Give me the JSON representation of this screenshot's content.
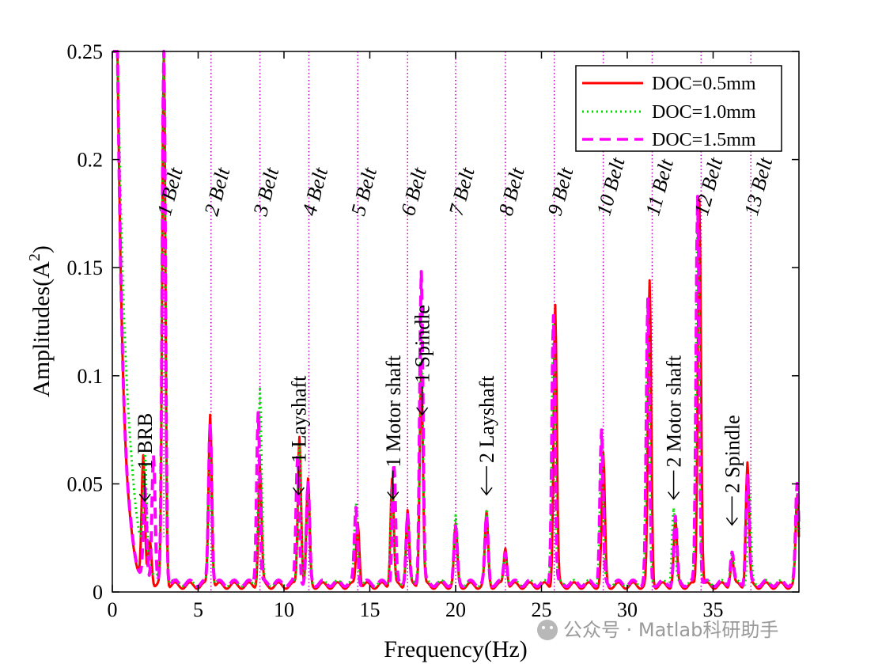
{
  "chart_data": {
    "type": "line",
    "xlabel": "Frequency(Hz)",
    "ylabel_main": "Amplitudes(A",
    "ylabel_sup": "2",
    "ylabel_end": ")",
    "xlim": [
      0,
      40
    ],
    "ylim": [
      0,
      0.25
    ],
    "xticks": [
      0,
      5,
      10,
      15,
      20,
      25,
      30,
      35
    ],
    "xtick_labels": [
      "0",
      "5",
      "10",
      "15",
      "20",
      "25",
      "30",
      "35"
    ],
    "yticks": [
      0,
      0.05,
      0.1,
      0.15,
      0.2,
      0.25
    ],
    "ytick_labels": [
      "0",
      "0.05",
      "0.1",
      "0.15",
      "0.2",
      "0.25"
    ],
    "legend": {
      "position": "top-right",
      "entries": [
        "DOC=0.5mm",
        "DOC=1.0mm",
        "DOC=1.5mm"
      ]
    },
    "series": [
      {
        "name": "DOC=0.5mm",
        "color": "#ff0000",
        "style": "solid",
        "floor": 0.003,
        "initial_decay": {
          "amp": 0.25,
          "tau": 0.35
        },
        "peaks": [
          [
            1.8,
            0.056
          ],
          [
            2.2,
            0.02
          ],
          [
            3.0,
            0.25
          ],
          [
            5.7,
            0.08
          ],
          [
            8.6,
            0.055
          ],
          [
            10.9,
            0.07
          ],
          [
            11.4,
            0.048
          ],
          [
            14.3,
            0.03
          ],
          [
            16.3,
            0.05
          ],
          [
            17.2,
            0.035
          ],
          [
            18.0,
            0.1
          ],
          [
            20.0,
            0.027
          ],
          [
            21.8,
            0.033
          ],
          [
            22.9,
            0.018
          ],
          [
            25.8,
            0.13
          ],
          [
            28.6,
            0.06
          ],
          [
            31.3,
            0.14
          ],
          [
            32.8,
            0.03
          ],
          [
            34.2,
            0.18
          ],
          [
            36.1,
            0.013
          ],
          [
            37.0,
            0.057
          ],
          [
            39.9,
            0.04
          ]
        ]
      },
      {
        "name": "DOC=1.0mm",
        "color": "#00dd00",
        "style": "dotted",
        "floor": 0.004,
        "initial_decay": {
          "amp": 0.25,
          "tau": 0.55
        },
        "peaks": [
          [
            1.9,
            0.045
          ],
          [
            3.0,
            0.25
          ],
          [
            5.7,
            0.06
          ],
          [
            8.6,
            0.09
          ],
          [
            10.9,
            0.065
          ],
          [
            11.4,
            0.04
          ],
          [
            14.2,
            0.037
          ],
          [
            16.3,
            0.045
          ],
          [
            17.2,
            0.03
          ],
          [
            18.0,
            0.12
          ],
          [
            20.0,
            0.03
          ],
          [
            21.8,
            0.033
          ],
          [
            22.9,
            0.015
          ],
          [
            25.7,
            0.125
          ],
          [
            28.5,
            0.065
          ],
          [
            31.2,
            0.13
          ],
          [
            32.7,
            0.035
          ],
          [
            34.1,
            0.175
          ],
          [
            36.1,
            0.015
          ],
          [
            37.1,
            0.04
          ],
          [
            39.9,
            0.04
          ]
        ]
      },
      {
        "name": "DOC=1.5mm",
        "color": "#ff00ff",
        "style": "dashed",
        "floor": 0.004,
        "initial_decay": {
          "amp": 0.25,
          "tau": 0.35
        },
        "peaks": [
          [
            1.9,
            0.04
          ],
          [
            2.4,
            0.06
          ],
          [
            3.0,
            0.25
          ],
          [
            5.7,
            0.075
          ],
          [
            8.5,
            0.08
          ],
          [
            10.8,
            0.06
          ],
          [
            11.4,
            0.045
          ],
          [
            14.2,
            0.035
          ],
          [
            16.4,
            0.055
          ],
          [
            17.2,
            0.032
          ],
          [
            18.0,
            0.145
          ],
          [
            20.0,
            0.025
          ],
          [
            21.8,
            0.03
          ],
          [
            22.9,
            0.015
          ],
          [
            25.7,
            0.125
          ],
          [
            28.5,
            0.07
          ],
          [
            31.2,
            0.13
          ],
          [
            32.8,
            0.03
          ],
          [
            34.1,
            0.18
          ],
          [
            36.1,
            0.015
          ],
          [
            37.0,
            0.05
          ],
          [
            39.9,
            0.045
          ]
        ]
      }
    ],
    "harmonic_lines": {
      "x": [
        3.0,
        5.75,
        8.6,
        11.45,
        14.3,
        17.2,
        20.0,
        22.9,
        25.75,
        28.6,
        31.45,
        34.3,
        37.2
      ],
      "labels": [
        "1 Belt",
        "2 Belt",
        "3 Belt",
        "4 Belt",
        "5 Belt",
        "6 Belt",
        "7 Belt",
        "8 Belt",
        "9 Belt",
        "10 Belt",
        "11 Belt",
        "12 Belt",
        "13 Belt"
      ],
      "color": "#bb00bb"
    },
    "annotations": [
      {
        "text": "1 BRB",
        "x": 1.9,
        "y": 0.042,
        "color": "#000000"
      },
      {
        "text": "1 Layshaft",
        "x": 10.85,
        "y": 0.045,
        "color": "#000000"
      },
      {
        "text": "1 Motor shaft",
        "x": 16.35,
        "y": 0.043,
        "color": "#000000"
      },
      {
        "text": "1 Spindle",
        "x": 18.05,
        "y": 0.082,
        "color": "#0000cc"
      },
      {
        "text": "2 Layshaft",
        "x": 21.8,
        "y": 0.045,
        "color": "#000000"
      },
      {
        "text": "2 Motor shaft",
        "x": 32.7,
        "y": 0.043,
        "color": "#000000"
      },
      {
        "text": "2 Spindle",
        "x": 36.1,
        "y": 0.031,
        "color": "#0000cc"
      }
    ]
  },
  "watermark": "公众号 · Matlab科研助手"
}
